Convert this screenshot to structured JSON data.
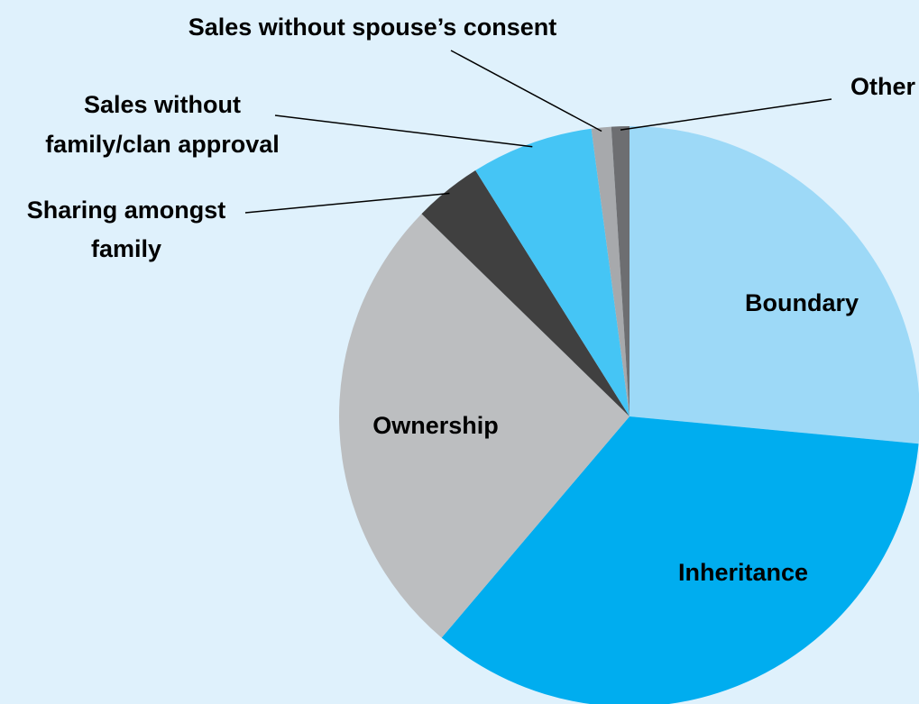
{
  "chart_data": {
    "type": "pie",
    "categories": [
      "Boundary",
      "Inheritance",
      "Ownership",
      "Sharing amongst\nfamily",
      "Sales without\nfamily/clan approval",
      "Sales without spouse’s consent",
      "Other"
    ],
    "values": [
      26.5,
      34.7,
      26.1,
      3.8,
      6.8,
      1.1,
      1.0
    ],
    "colors": [
      "#9dd9f7",
      "#00adef",
      "#bcbec0",
      "#404040",
      "#45c5f5",
      "#a7a9ac",
      "#6d6e71"
    ]
  }
}
